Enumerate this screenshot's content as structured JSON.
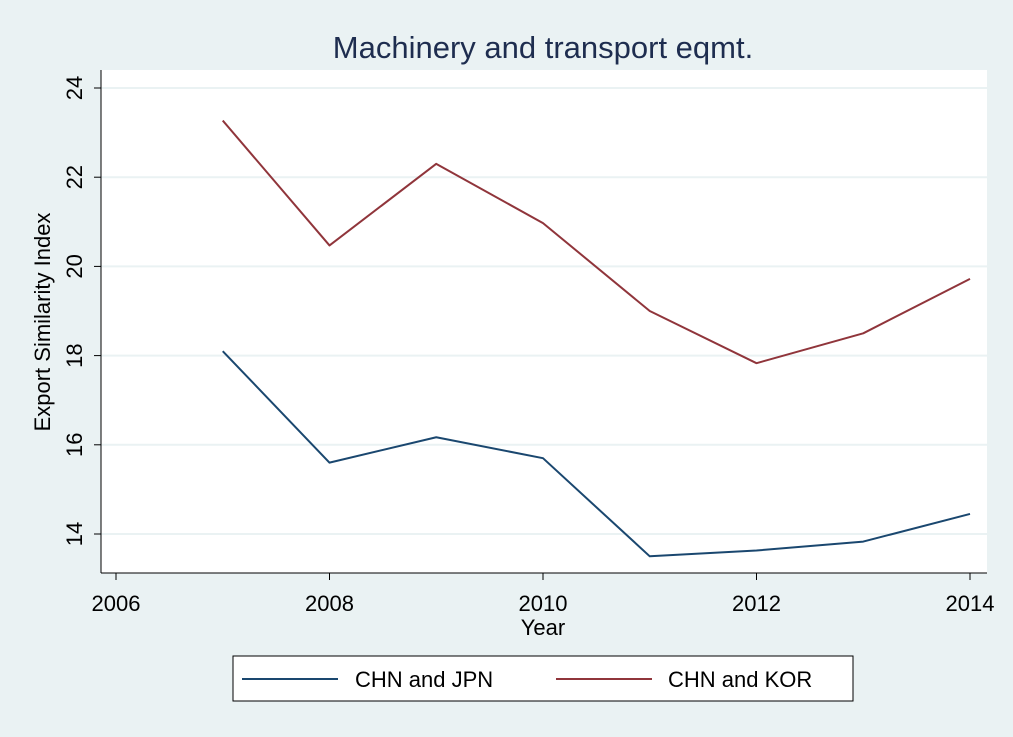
{
  "chart_data": {
    "type": "line",
    "title": "Machinery and transport eqmt.",
    "xlabel": "Year",
    "ylabel": "Export Similarity Index",
    "x_ticks": [
      2006,
      2008,
      2010,
      2012,
      2014
    ],
    "y_ticks": [
      14,
      16,
      18,
      20,
      22,
      24
    ],
    "xlim": [
      2006,
      2014
    ],
    "ylim": [
      13.3,
      24.2
    ],
    "grid": true,
    "legend_position": "bottom",
    "series": [
      {
        "name": "CHN and JPN",
        "color": "#1a476f",
        "x": [
          2007,
          2008,
          2009,
          2010,
          2011,
          2012,
          2013,
          2014
        ],
        "values": [
          18.1,
          15.6,
          16.17,
          15.7,
          13.5,
          13.63,
          13.83,
          14.45
        ]
      },
      {
        "name": "CHN and KOR",
        "color": "#90353b",
        "x": [
          2007,
          2008,
          2009,
          2010,
          2011,
          2012,
          2013,
          2014
        ],
        "values": [
          23.27,
          20.47,
          22.3,
          20.97,
          19.0,
          17.83,
          18.5,
          19.72
        ]
      }
    ]
  }
}
